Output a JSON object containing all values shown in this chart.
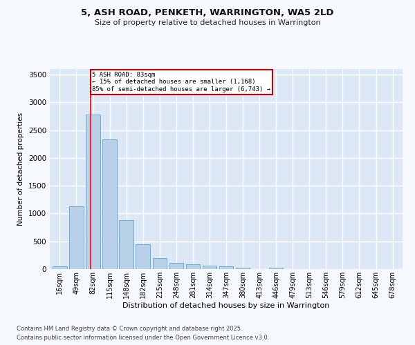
{
  "title1": "5, ASH ROAD, PENKETH, WARRINGTON, WA5 2LD",
  "title2": "Size of property relative to detached houses in Warrington",
  "xlabel": "Distribution of detached houses by size in Warrington",
  "ylabel": "Number of detached properties",
  "bar_color": "#b8d0e8",
  "bar_edge_color": "#6aaad4",
  "background_color": "#dce8f5",
  "fig_background": "#f5f8fc",
  "grid_color": "#ffffff",
  "categories": [
    "16sqm",
    "49sqm",
    "82sqm",
    "115sqm",
    "148sqm",
    "182sqm",
    "215sqm",
    "248sqm",
    "281sqm",
    "314sqm",
    "347sqm",
    "380sqm",
    "413sqm",
    "446sqm",
    "479sqm",
    "513sqm",
    "546sqm",
    "579sqm",
    "612sqm",
    "645sqm",
    "678sqm"
  ],
  "values": [
    50,
    1130,
    2780,
    2340,
    880,
    450,
    200,
    110,
    90,
    65,
    45,
    30,
    5,
    30,
    5,
    0,
    0,
    0,
    0,
    0,
    0
  ],
  "red_line_x": 1.85,
  "annotation_text": "5 ASH ROAD: 83sqm\n← 15% of detached houses are smaller (1,168)\n85% of semi-detached houses are larger (6,743) →",
  "annotation_box_color": "#cc0000",
  "ylim": [
    0,
    3600
  ],
  "yticks": [
    0,
    500,
    1000,
    1500,
    2000,
    2500,
    3000,
    3500
  ],
  "footnote1": "Contains HM Land Registry data © Crown copyright and database right 2025.",
  "footnote2": "Contains public sector information licensed under the Open Government Licence v3.0."
}
